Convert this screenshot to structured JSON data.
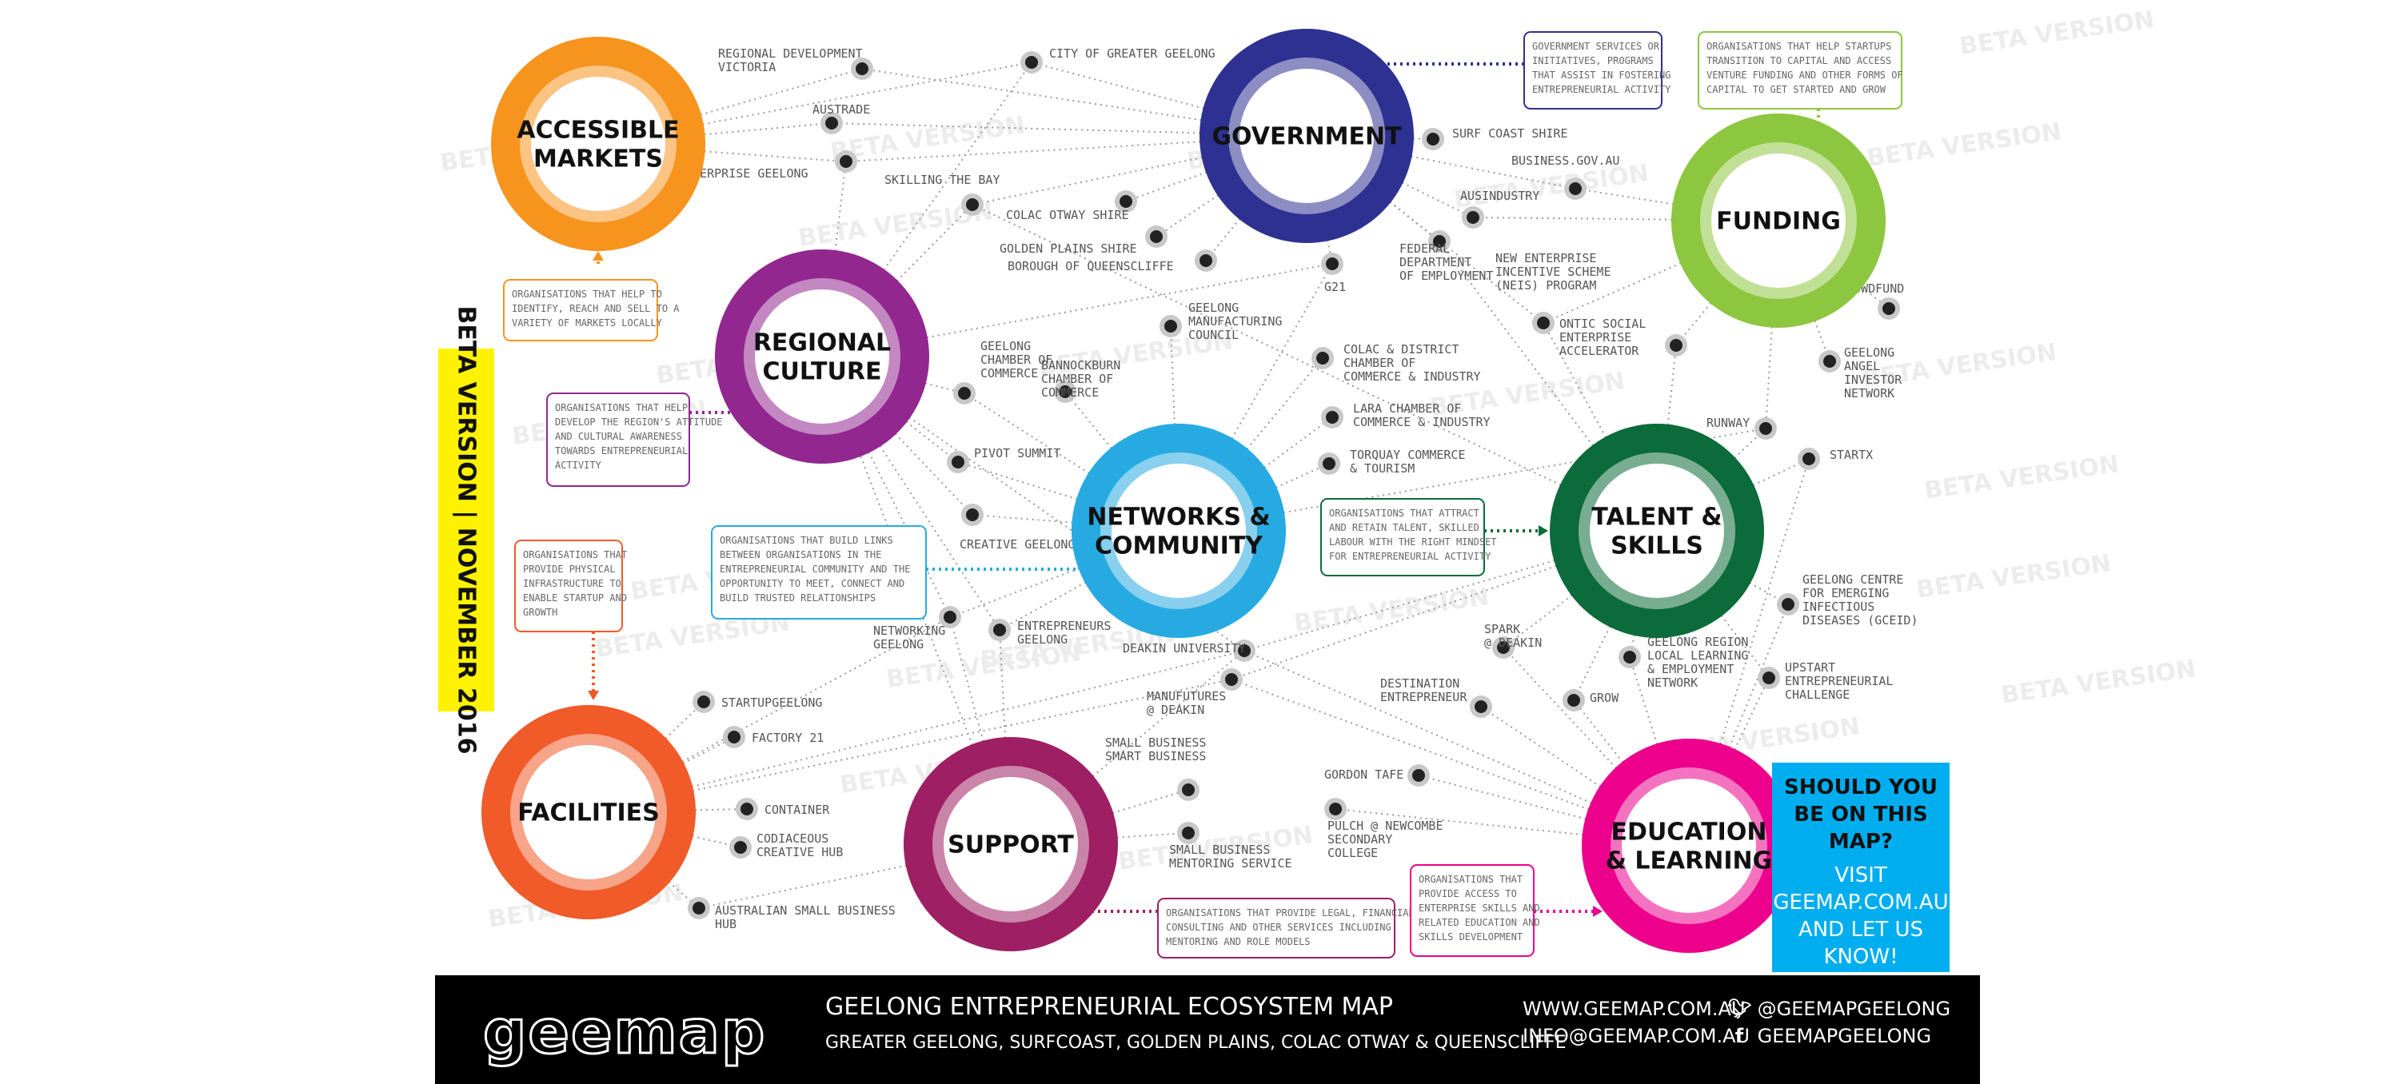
{
  "hubs": [
    {
      "id": "accessible-markets",
      "lines": [
        "ACCESSIBLE",
        "MARKETS"
      ],
      "color": "#f7941d"
    },
    {
      "id": "government",
      "lines": [
        "GOVERNMENT"
      ],
      "color": "#2e3192"
    },
    {
      "id": "funding",
      "lines": [
        "FUNDING"
      ],
      "color": "#8dc63f"
    },
    {
      "id": "regional-culture",
      "lines": [
        "REGIONAL",
        "CULTURE"
      ],
      "color": "#92278f"
    },
    {
      "id": "networks-community",
      "lines": [
        "NETWORKS &",
        "COMMUNITY"
      ],
      "color": "#27aae1"
    },
    {
      "id": "talent-skills",
      "lines": [
        "TALENT &",
        "SKILLS"
      ],
      "color": "#0b6b3a"
    },
    {
      "id": "facilities",
      "lines": [
        "FACILITIES"
      ],
      "color": "#f15a29"
    },
    {
      "id": "support",
      "lines": [
        "SUPPORT"
      ],
      "color": "#9e1f63"
    },
    {
      "id": "education-learning",
      "lines": [
        "EDUCATION",
        "& LEARNING"
      ],
      "color": "#ec008c"
    }
  ],
  "nodes": [
    {
      "id": "regional-development-victoria",
      "lines": [
        "REGIONAL DEVELOPMENT",
        "VICTORIA"
      ]
    },
    {
      "id": "city-of-greater-geelong",
      "lines": [
        "CITY OF GREATER GEELONG"
      ]
    },
    {
      "id": "austrade",
      "lines": [
        "AUSTRADE"
      ]
    },
    {
      "id": "enterprise-geelong",
      "lines": [
        "ENTERPRISE GEELONG"
      ]
    },
    {
      "id": "skilling-the-bay",
      "lines": [
        "SKILLING THE BAY"
      ]
    },
    {
      "id": "colac-otway-shire",
      "lines": [
        "COLAC OTWAY SHIRE"
      ]
    },
    {
      "id": "golden-plains-shire",
      "lines": [
        "GOLDEN PLAINS SHIRE"
      ]
    },
    {
      "id": "borough-of-queenscliffe",
      "lines": [
        "BOROUGH OF QUEENSCLIFFE"
      ]
    },
    {
      "id": "surf-coast-shire",
      "lines": [
        "SURF COAST SHIRE"
      ]
    },
    {
      "id": "business-gov-au",
      "lines": [
        "BUSINESS.GOV.AU"
      ]
    },
    {
      "id": "ausindustry",
      "lines": [
        "AUSINDUSTRY"
      ]
    },
    {
      "id": "federal-department-of-employment",
      "lines": [
        "FEDERAL",
        "DEPARTMENT",
        "OF EMPLOYMENT"
      ]
    },
    {
      "id": "g21",
      "lines": [
        "G21"
      ]
    },
    {
      "id": "new-enterprise-incentive-scheme",
      "lines": [
        "NEW ENTERPRISE",
        "INCENTIVE SCHEME",
        "(NEIS) PROGRAM"
      ]
    },
    {
      "id": "crowdsmart",
      "lines": [
        "CROWDFUND"
      ]
    },
    {
      "id": "ontic-social-enterprise-accelerator",
      "lines": [
        "ONTIC SOCIAL",
        "ENTERPRISE",
        "ACCELERATOR"
      ]
    },
    {
      "id": "geelong-angel-investor-network",
      "lines": [
        "GEELONG",
        "ANGEL",
        "INVESTOR",
        "NETWORK"
      ]
    },
    {
      "id": "runway",
      "lines": [
        "RUNWAY"
      ]
    },
    {
      "id": "startx",
      "lines": [
        "STARTX"
      ]
    },
    {
      "id": "geelong-manufacturing-council",
      "lines": [
        "GEELONG",
        "MANUFACTURING",
        "COUNCIL"
      ]
    },
    {
      "id": "colac-district-chamber",
      "lines": [
        "COLAC & DISTRICT",
        "CHAMBER OF",
        "COMMERCE & INDUSTRY"
      ]
    },
    {
      "id": "geelong-chamber-of-commerce",
      "lines": [
        "GEELONG",
        "CHAMBER OF",
        "COMMERCE"
      ]
    },
    {
      "id": "bannockburn-chamber",
      "lines": [
        "BANNOCKBURN",
        "CHAMBER OF",
        "COMMERCE"
      ]
    },
    {
      "id": "lara-chamber",
      "lines": [
        "LARA CHAMBER OF",
        "COMMERCE & INDUSTRY"
      ]
    },
    {
      "id": "torquay-commerce-tourism",
      "lines": [
        "TORQUAY COMMERCE",
        "& TOURISM"
      ]
    },
    {
      "id": "pivot-summit",
      "lines": [
        "PIVOT SUMMIT"
      ]
    },
    {
      "id": "creative-geelong",
      "lines": [
        "CREATIVE GEELONG"
      ]
    },
    {
      "id": "networking-geelong",
      "lines": [
        "NETWORKING",
        "GEELONG"
      ]
    },
    {
      "id": "entrepreneurs-geelong",
      "lines": [
        "ENTREPRENEURS",
        "GEELONG"
      ]
    },
    {
      "id": "deakin-university",
      "lines": [
        "DEAKIN UNIVERSITY"
      ]
    },
    {
      "id": "manufutures",
      "lines": [
        "MANUFUTURES",
        "@ DEAKIN"
      ]
    },
    {
      "id": "geelong-centre-emerging-infection",
      "lines": [
        "GEELONG CENTRE",
        "FOR EMERGING",
        "INFECTIOUS",
        "DISEASES (GCEID)"
      ]
    },
    {
      "id": "spark-at-deakin",
      "lines": [
        "SPARK",
        "@ DEAKIN"
      ]
    },
    {
      "id": "grow",
      "lines": [
        "GROW"
      ]
    },
    {
      "id": "geelong-region-local-learning",
      "lines": [
        "GEELONG REGION",
        "LOCAL LEARNING",
        "& EMPLOYMENT",
        "NETWORK"
      ]
    },
    {
      "id": "upstart",
      "lines": [
        "UPSTART",
        "ENTREPRENEURIAL",
        "CHALLENGE"
      ]
    },
    {
      "id": "destination-entrepreneur",
      "lines": [
        "DESTINATION",
        "ENTREPRENEUR"
      ]
    },
    {
      "id": "gordon-tafe",
      "lines": [
        "GORDON TAFE"
      ]
    },
    {
      "id": "pulch-newcombe",
      "lines": [
        "PULCH @ NEWCOMBE",
        "SECONDARY",
        "COLLEGE"
      ]
    },
    {
      "id": "small-business-victoria",
      "lines": [
        "SMALL BUSINESS",
        "SMART BUSINESS"
      ]
    },
    {
      "id": "small-business-mentoring",
      "lines": [
        "SMALL BUSINESS",
        "MENTORING SERVICE"
      ]
    },
    {
      "id": "startup-geelong",
      "lines": [
        "STARTUPGEELONG"
      ]
    },
    {
      "id": "factory-21",
      "lines": [
        "FACTORY 21"
      ]
    },
    {
      "id": "ctrl-one",
      "lines": [
        "CONTAINER"
      ]
    },
    {
      "id": "cohabitat",
      "lines": [
        "CODIACEOUS",
        "CREATIVE HUB"
      ]
    },
    {
      "id": "australian-small-business",
      "lines": [
        "AUSTRALIAN SMALL BUSINESS",
        "HUB"
      ]
    }
  ],
  "notes": [
    {
      "id": "note-accessible-markets",
      "lines": [
        "ORGANISATIONS THAT HELP TO",
        "IDENTIFY, REACH AND SELL TO A",
        "VARIETY OF MARKETS LOCALLY"
      ],
      "color": "#f7941d"
    },
    {
      "id": "note-government",
      "lines": [
        "GOVERNMENT SERVICES OR",
        "INITIATIVES, PROGRAMS",
        "THAT ASSIST IN FOSTERING",
        "ENTREPRENEURIAL ACTIVITY"
      ],
      "color": "#2e3192"
    },
    {
      "id": "note-funding",
      "lines": [
        "ORGANISATIONS THAT HELP STARTUPS",
        "TRANSITION TO CAPITAL AND ACCESS",
        "VENTURE FUNDING AND OTHER FORMS OF",
        "CAPITAL TO GET STARTED AND GROW"
      ],
      "color": "#8dc63f"
    },
    {
      "id": "note-regional-culture",
      "lines": [
        "ORGANISATIONS THAT HELP",
        "DEVELOP THE REGION'S ATTITUDE",
        "AND CULTURAL AWARENESS",
        "TOWARDS ENTREPRENEURIAL",
        "ACTIVITY"
      ],
      "color": "#92278f"
    },
    {
      "id": "note-networks",
      "lines": [
        "ORGANISATIONS THAT BUILD LINKS",
        "BETWEEN ORGANISATIONS IN THE",
        "ENTREPRENEURIAL COMMUNITY AND THE",
        "OPPORTUNITY TO MEET, CONNECT AND",
        "BUILD TRUSTED RELATIONSHIPS"
      ],
      "color": "#27aae1"
    },
    {
      "id": "note-talent",
      "lines": [
        "ORGANISATIONS THAT ATTRACT",
        "AND RETAIN TALENT, SKILLED",
        "LABOUR WITH THE RIGHT MINDSET",
        "FOR ENTREPRENEURIAL ACTIVITY"
      ],
      "color": "#0b6b3a"
    },
    {
      "id": "note-facilities",
      "lines": [
        "ORGANISATIONS THAT",
        "PROVIDE PHYSICAL",
        "INFRASTRUCTURE TO",
        "ENABLE STARTUP AND",
        "GROWTH"
      ],
      "color": "#f15a29"
    },
    {
      "id": "note-support",
      "lines": [
        "ORGANISATIONS THAT PROVIDE LEGAL, FINANCIAL,",
        "CONSULTING AND OTHER SERVICES INCLUDING",
        "MENTORING AND ROLE MODELS"
      ],
      "color": "#9e1f63"
    },
    {
      "id": "note-education",
      "lines": [
        "ORGANISATIONS THAT",
        "PROVIDE ACCESS TO",
        "ENTERPRISE SKILLS AND",
        "RELATED EDUCATION AND",
        "SKILLS DEVELOPMENT"
      ],
      "color": "#ec008c"
    }
  ],
  "watermark": "BETA VERSION",
  "beta_band": {
    "text": "BETA VERSION  |  NOVEMBER 2016",
    "color": "#fff200"
  },
  "cta": {
    "question": "SHOULD YOU BE ON THIS MAP?",
    "visit": "VISIT GEEMAP.COM.AU AND LET US KNOW!",
    "color": "#00aeef"
  },
  "footer": {
    "logo": "geemap",
    "title": "GEELONG ENTREPRENEURIAL ECOSYSTEM MAP",
    "subtitle": "GREATER GEELONG, SURFCOAST, GOLDEN PLAINS, COLAC OTWAY & QUEENSCLIFFE",
    "website": "WWW.GEEMAP.COM.AU",
    "email": "INFO@GEEMAP.COM.AU",
    "twitter": "@GEEMAPGEELONG",
    "facebook": "GEEMAPGEELONG",
    "twitter_icon": "twitter-bird-icon",
    "facebook_icon": "facebook-f-icon"
  }
}
